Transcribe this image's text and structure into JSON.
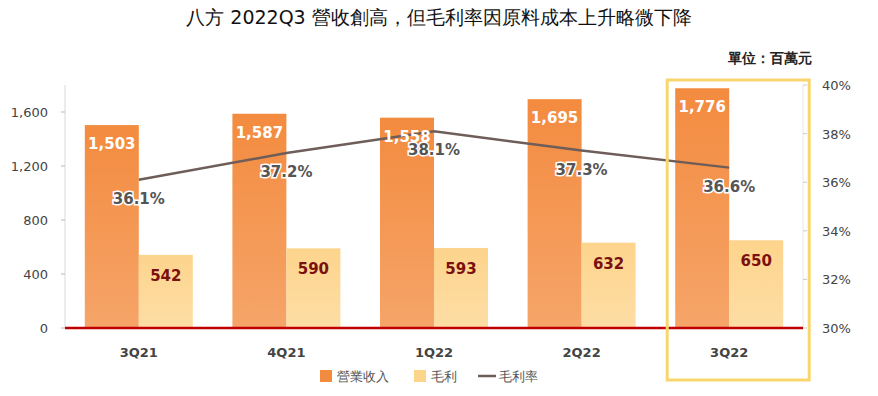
{
  "chart_data": {
    "type": "bar",
    "title": "八方 2022Q3 營收創高，但毛利率因原料成本上升略微下降",
    "subtitle": "單位：百萬元",
    "categories": [
      "3Q21",
      "4Q21",
      "1Q22",
      "2Q22",
      "3Q22"
    ],
    "series": [
      {
        "name": "營業收入",
        "type": "bar",
        "color": "#f38b3f",
        "values": [
          1503,
          1587,
          1558,
          1695,
          1776
        ],
        "value_labels": [
          "1,503",
          "1,587",
          "1,558",
          "1,695",
          "1,776"
        ]
      },
      {
        "name": "毛利",
        "type": "bar",
        "color": "#fdd48c",
        "values": [
          542,
          590,
          593,
          632,
          650
        ]
      },
      {
        "name": "毛利率",
        "type": "line",
        "axis": "y2",
        "color": "#6e5d58",
        "values": [
          36.1,
          37.2,
          38.1,
          37.3,
          36.6
        ],
        "value_labels": [
          "36.1%",
          "37.2%",
          "38.1%",
          "37.3%",
          "36.6%"
        ]
      }
    ],
    "ylim": [
      0,
      1800
    ],
    "yticks": [
      0,
      400,
      800,
      {
        "value": 1200,
        "label": "1,200"
      },
      {
        "value": 1600,
        "label": "1,600"
      }
    ],
    "y2lim": [
      30,
      40
    ],
    "y2ticks": [
      {
        "value": 30,
        "label": "30%"
      },
      {
        "value": 32,
        "label": "32%"
      },
      {
        "value": 34,
        "label": "34%"
      },
      {
        "value": 36,
        "label": "36%"
      },
      {
        "value": 38,
        "label": "38%"
      },
      {
        "value": 40,
        "label": "40%"
      }
    ],
    "grid": false,
    "legend": "bottom",
    "data_labels": true
  }
}
